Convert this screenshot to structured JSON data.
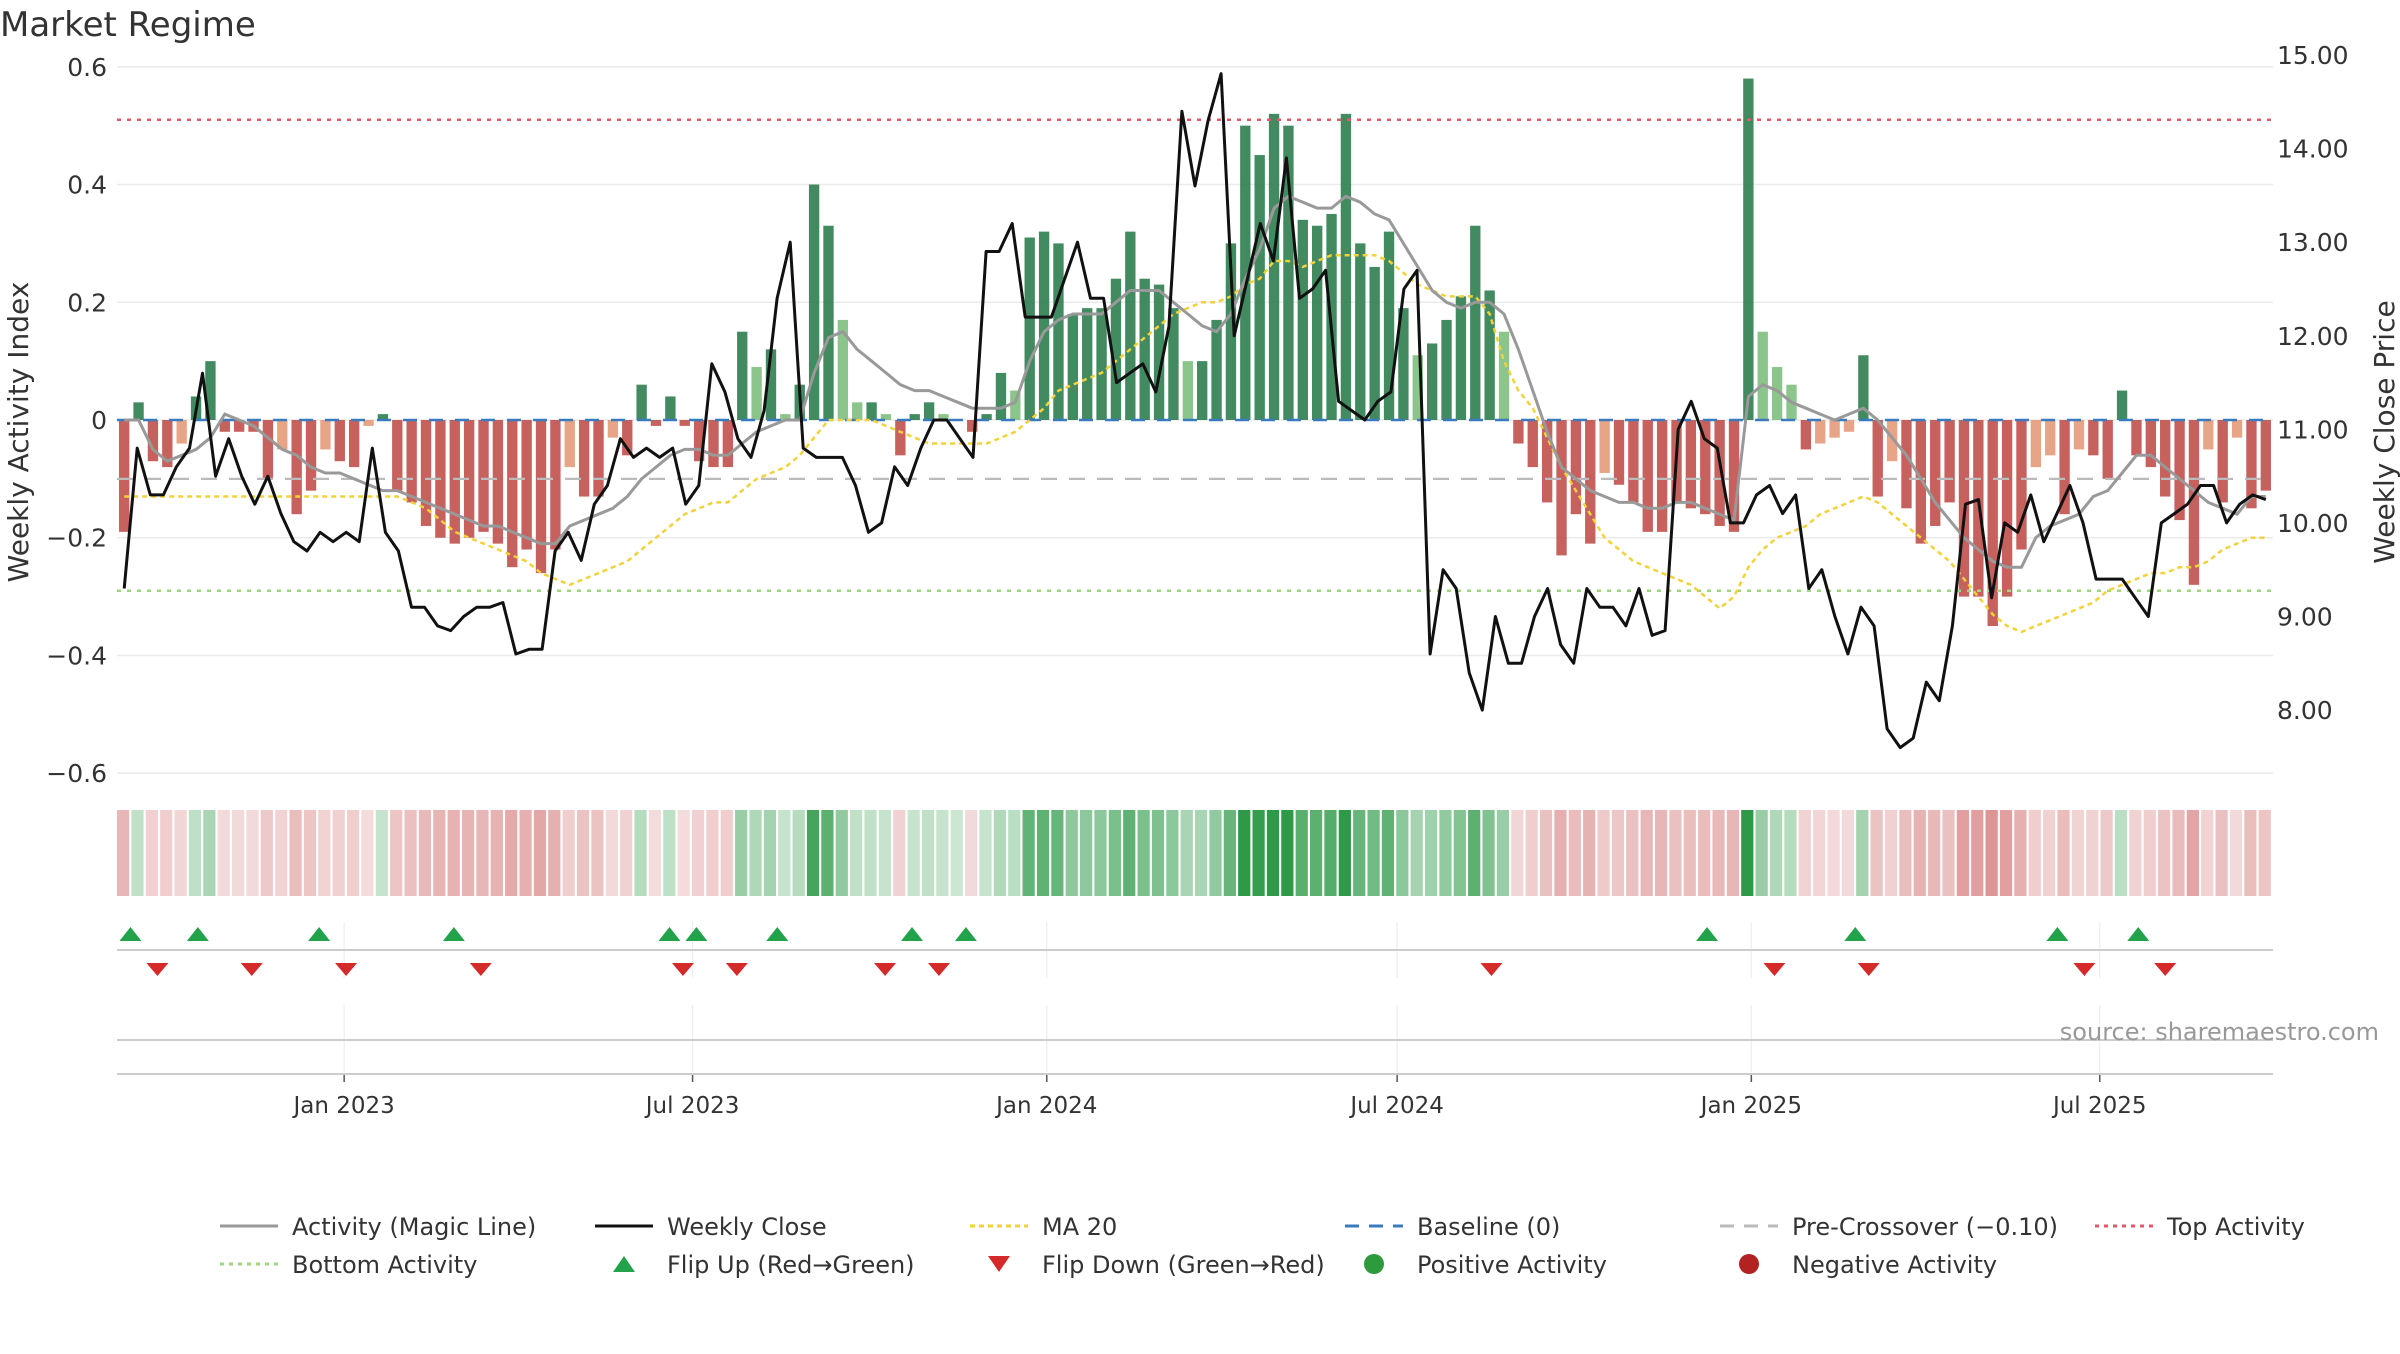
{
  "chart_data": {
    "title": "Market Regime",
    "type": "bar",
    "ylabel_left": "Weekly Activity Index",
    "ylabel_right": "Weekly Close Price",
    "ylim_left": [
      -0.62,
      0.62
    ],
    "ylim_right": [
      7.2,
      15.0
    ],
    "yticks_left": [
      "0.6",
      "0.4",
      "0.2",
      "0",
      "−0.2",
      "−0.4",
      "−0.6"
    ],
    "yticks_right": [
      "15.00",
      "14.00",
      "13.00",
      "12.00",
      "11.00",
      "10.00",
      "9.00",
      "8.00"
    ],
    "x_range": [
      "2022-09-05",
      "2025-09-29"
    ],
    "xticks": [
      "Jan 2023",
      "Jul 2023",
      "Jan 2024",
      "Jul 2024",
      "Jan 2025",
      "Jul 2025"
    ],
    "grid": true,
    "reference_lines": {
      "top_activity": 0.51,
      "bottom_activity": -0.29,
      "baseline": 0,
      "pre_crossover": -0.1
    },
    "activity_index": [
      -0.19,
      0.03,
      -0.07,
      -0.08,
      -0.04,
      0.04,
      0.1,
      -0.02,
      -0.02,
      -0.02,
      -0.1,
      -0.05,
      -0.16,
      -0.12,
      -0.05,
      -0.07,
      -0.08,
      -0.01,
      0.01,
      -0.12,
      -0.14,
      -0.18,
      -0.2,
      -0.21,
      -0.2,
      -0.19,
      -0.21,
      -0.25,
      -0.22,
      -0.26,
      -0.22,
      -0.08,
      -0.13,
      -0.13,
      -0.03,
      -0.06,
      0.06,
      -0.01,
      0.04,
      -0.01,
      -0.07,
      -0.08,
      -0.08,
      0.15,
      0.09,
      0.12,
      0.01,
      0.06,
      0.4,
      0.33,
      0.17,
      0.03,
      0.03,
      0.01,
      -0.06,
      0.01,
      0.03,
      0.01,
      0.0,
      -0.02,
      0.01,
      0.08,
      0.05,
      0.31,
      0.32,
      0.3,
      0.18,
      0.19,
      0.19,
      0.24,
      0.32,
      0.24,
      0.23,
      0.19,
      0.1,
      0.1,
      0.17,
      0.3,
      0.5,
      0.45,
      0.52,
      0.5,
      0.34,
      0.33,
      0.35,
      0.52,
      0.3,
      0.26,
      0.32,
      0.19,
      0.11,
      0.13,
      0.17,
      0.21,
      0.33,
      0.22,
      0.15,
      -0.04,
      -0.08,
      -0.14,
      -0.23,
      -0.16,
      -0.21,
      -0.09,
      -0.11,
      -0.14,
      -0.19,
      -0.19,
      -0.14,
      -0.15,
      -0.16,
      -0.18,
      -0.19,
      0.58,
      0.15,
      0.09,
      0.06,
      -0.05,
      -0.04,
      -0.03,
      -0.02,
      0.11,
      -0.13,
      -0.07,
      -0.15,
      -0.21,
      -0.18,
      -0.14,
      -0.3,
      -0.3,
      -0.35,
      -0.3,
      -0.22,
      -0.08,
      -0.06,
      -0.16,
      -0.05,
      -0.06,
      -0.1,
      0.05,
      -0.06,
      -0.08,
      -0.13,
      -0.17,
      -0.28,
      -0.05,
      -0.14,
      -0.03,
      -0.15,
      -0.12
    ],
    "weekly_close": [
      9.3,
      10.8,
      10.3,
      10.3,
      10.6,
      10.8,
      11.6,
      10.5,
      10.9,
      10.5,
      10.2,
      10.5,
      10.1,
      9.8,
      9.7,
      9.9,
      9.8,
      9.9,
      9.8,
      10.8,
      9.9,
      9.7,
      9.1,
      9.1,
      8.9,
      8.85,
      9.0,
      9.1,
      9.1,
      9.15,
      8.6,
      8.65,
      8.65,
      9.7,
      9.9,
      9.6,
      10.2,
      10.4,
      10.9,
      10.7,
      10.8,
      10.7,
      10.8,
      10.2,
      10.4,
      11.7,
      11.4,
      10.9,
      10.7,
      11.2,
      12.4,
      13.0,
      10.8,
      10.7,
      10.7,
      10.7,
      10.4,
      9.9,
      10.0,
      10.6,
      10.4,
      10.8,
      11.1,
      11.1,
      10.9,
      10.7,
      12.9,
      12.9,
      13.2,
      12.2,
      12.2,
      12.2,
      12.6,
      13.0,
      12.4,
      12.4,
      11.5,
      11.6,
      11.7,
      11.4,
      12.1,
      14.4,
      13.6,
      14.3,
      14.8,
      12.0,
      12.6,
      13.2,
      12.8,
      13.9,
      12.4,
      12.5,
      12.7,
      11.3,
      11.2,
      11.1,
      11.3,
      11.4,
      12.5,
      12.7,
      8.6,
      9.5,
      9.3,
      8.4,
      8.0,
      9.0,
      8.5,
      8.5,
      9.0,
      9.3,
      8.7,
      8.5,
      9.3,
      9.1,
      9.1,
      8.9,
      9.3,
      8.8,
      8.85,
      11.0,
      11.3,
      10.9,
      10.8,
      10.0,
      10.0,
      10.3,
      10.4,
      10.1,
      10.3,
      9.3,
      9.5,
      9.0,
      8.6,
      9.1,
      8.9,
      7.8,
      7.6,
      7.7,
      8.3,
      8.1,
      8.9,
      10.2,
      10.25,
      9.2,
      10.0,
      9.9,
      10.3,
      9.8,
      10.1,
      10.4,
      10.0,
      9.4,
      9.4,
      9.4,
      9.2,
      9.0,
      10.0,
      10.1,
      10.2,
      10.4,
      10.4,
      10.0,
      10.2,
      10.3,
      10.25
    ],
    "magic_line": [
      0.0,
      0.0,
      -0.05,
      -0.07,
      -0.06,
      -0.05,
      -0.03,
      0.01,
      0.0,
      -0.01,
      -0.03,
      -0.05,
      -0.06,
      -0.08,
      -0.09,
      -0.09,
      -0.1,
      -0.11,
      -0.12,
      -0.12,
      -0.13,
      -0.14,
      -0.15,
      -0.16,
      -0.17,
      -0.18,
      -0.18,
      -0.19,
      -0.2,
      -0.21,
      -0.21,
      -0.18,
      -0.17,
      -0.16,
      -0.15,
      -0.13,
      -0.1,
      -0.08,
      -0.06,
      -0.05,
      -0.05,
      -0.06,
      -0.06,
      -0.04,
      -0.02,
      -0.01,
      0.0,
      0.0,
      0.08,
      0.14,
      0.15,
      0.12,
      0.1,
      0.08,
      0.06,
      0.05,
      0.05,
      0.04,
      0.03,
      0.02,
      0.02,
      0.02,
      0.03,
      0.1,
      0.15,
      0.17,
      0.18,
      0.18,
      0.18,
      0.2,
      0.22,
      0.22,
      0.22,
      0.2,
      0.18,
      0.16,
      0.15,
      0.18,
      0.24,
      0.29,
      0.36,
      0.38,
      0.37,
      0.36,
      0.36,
      0.38,
      0.37,
      0.35,
      0.34,
      0.3,
      0.26,
      0.22,
      0.2,
      0.19,
      0.2,
      0.2,
      0.18,
      0.12,
      0.05,
      -0.02,
      -0.08,
      -0.1,
      -0.12,
      -0.13,
      -0.14,
      -0.14,
      -0.15,
      -0.15,
      -0.14,
      -0.14,
      -0.15,
      -0.16,
      -0.17,
      0.04,
      0.06,
      0.05,
      0.03,
      0.02,
      0.01,
      0.0,
      0.01,
      0.02,
      0.0,
      -0.03,
      -0.06,
      -0.1,
      -0.14,
      -0.17,
      -0.2,
      -0.22,
      -0.24,
      -0.25,
      -0.25,
      -0.2,
      -0.18,
      -0.17,
      -0.16,
      -0.13,
      -0.12,
      -0.09,
      -0.06,
      -0.06,
      -0.08,
      -0.1,
      -0.12,
      -0.14,
      -0.15,
      -0.16,
      -0.13,
      -0.13
    ],
    "ma20": [
      -0.13,
      -0.13,
      -0.13,
      -0.13,
      -0.13,
      -0.13,
      -0.13,
      -0.13,
      -0.13,
      -0.13,
      -0.13,
      -0.13,
      -0.13,
      -0.13,
      -0.13,
      -0.13,
      -0.13,
      -0.13,
      -0.13,
      -0.13,
      -0.14,
      -0.15,
      -0.17,
      -0.19,
      -0.2,
      -0.21,
      -0.22,
      -0.23,
      -0.24,
      -0.26,
      -0.27,
      -0.28,
      -0.27,
      -0.26,
      -0.25,
      -0.24,
      -0.22,
      -0.2,
      -0.18,
      -0.16,
      -0.15,
      -0.14,
      -0.14,
      -0.12,
      -0.1,
      -0.09,
      -0.08,
      -0.06,
      -0.03,
      0.0,
      0.0,
      0.0,
      0.0,
      -0.01,
      -0.02,
      -0.03,
      -0.04,
      -0.04,
      -0.04,
      -0.04,
      -0.04,
      -0.03,
      -0.02,
      0.0,
      0.02,
      0.05,
      0.06,
      0.07,
      0.08,
      0.1,
      0.12,
      0.14,
      0.16,
      0.18,
      0.19,
      0.2,
      0.2,
      0.21,
      0.23,
      0.24,
      0.27,
      0.27,
      0.26,
      0.27,
      0.28,
      0.28,
      0.28,
      0.28,
      0.27,
      0.25,
      0.23,
      0.22,
      0.21,
      0.21,
      0.21,
      0.18,
      0.1,
      0.05,
      0.02,
      -0.03,
      -0.08,
      -0.12,
      -0.16,
      -0.2,
      -0.22,
      -0.24,
      -0.25,
      -0.26,
      -0.27,
      -0.28,
      -0.3,
      -0.32,
      -0.3,
      -0.25,
      -0.22,
      -0.2,
      -0.19,
      -0.18,
      -0.16,
      -0.15,
      -0.14,
      -0.13,
      -0.14,
      -0.16,
      -0.18,
      -0.2,
      -0.22,
      -0.24,
      -0.27,
      -0.3,
      -0.33,
      -0.35,
      -0.36,
      -0.35,
      -0.34,
      -0.33,
      -0.32,
      -0.31,
      -0.29,
      -0.28,
      -0.27,
      -0.26,
      -0.26,
      -0.25,
      -0.25,
      -0.24,
      -0.22,
      -0.21,
      -0.2,
      -0.2
    ],
    "flip_up": [
      "2022-09-12",
      "2022-10-17",
      "2022-12-19",
      "2023-02-27",
      "2023-06-19",
      "2023-07-03",
      "2023-08-14",
      "2023-10-23",
      "2023-11-20",
      "2024-12-09",
      "2025-02-24",
      "2025-06-09",
      "2025-07-21"
    ],
    "flip_down": [
      "2022-09-26",
      "2022-11-14",
      "2023-01-02",
      "2023-03-13",
      "2023-06-26",
      "2023-07-24",
      "2023-10-09",
      "2023-11-06",
      "2024-08-19",
      "2025-01-13",
      "2025-03-03",
      "2025-06-23",
      "2025-08-04"
    ],
    "annotation": "source: sharemaestro.com",
    "legend_position": "bottom",
    "legend": [
      "Activity (Magic Line)",
      "Weekly Close",
      "MA 20",
      "Baseline (0)",
      "Pre-Crossover (−0.10)",
      "Top Activity",
      "Bottom Activity",
      "Flip Up (Red→Green)",
      "Flip Down (Green→Red)",
      "Positive Activity",
      "Negative Activity"
    ]
  },
  "colors": {
    "pos_strong": "#2e7d4f",
    "pos_light": "#7fbf7f",
    "neg_strong": "#c0504d",
    "neg_light": "#e59a7a",
    "magic": "#999999",
    "close": "#111111",
    "ma20": "#f2d23a",
    "baseline": "#3a7bbf",
    "precross": "#bbbbbb",
    "top": "#e05a6a",
    "bottom": "#9fd67f",
    "flip_up": "#22a24a",
    "flip_down": "#d42a2a",
    "pos_dot": "#2e9a3e",
    "neg_dot": "#b22222"
  }
}
